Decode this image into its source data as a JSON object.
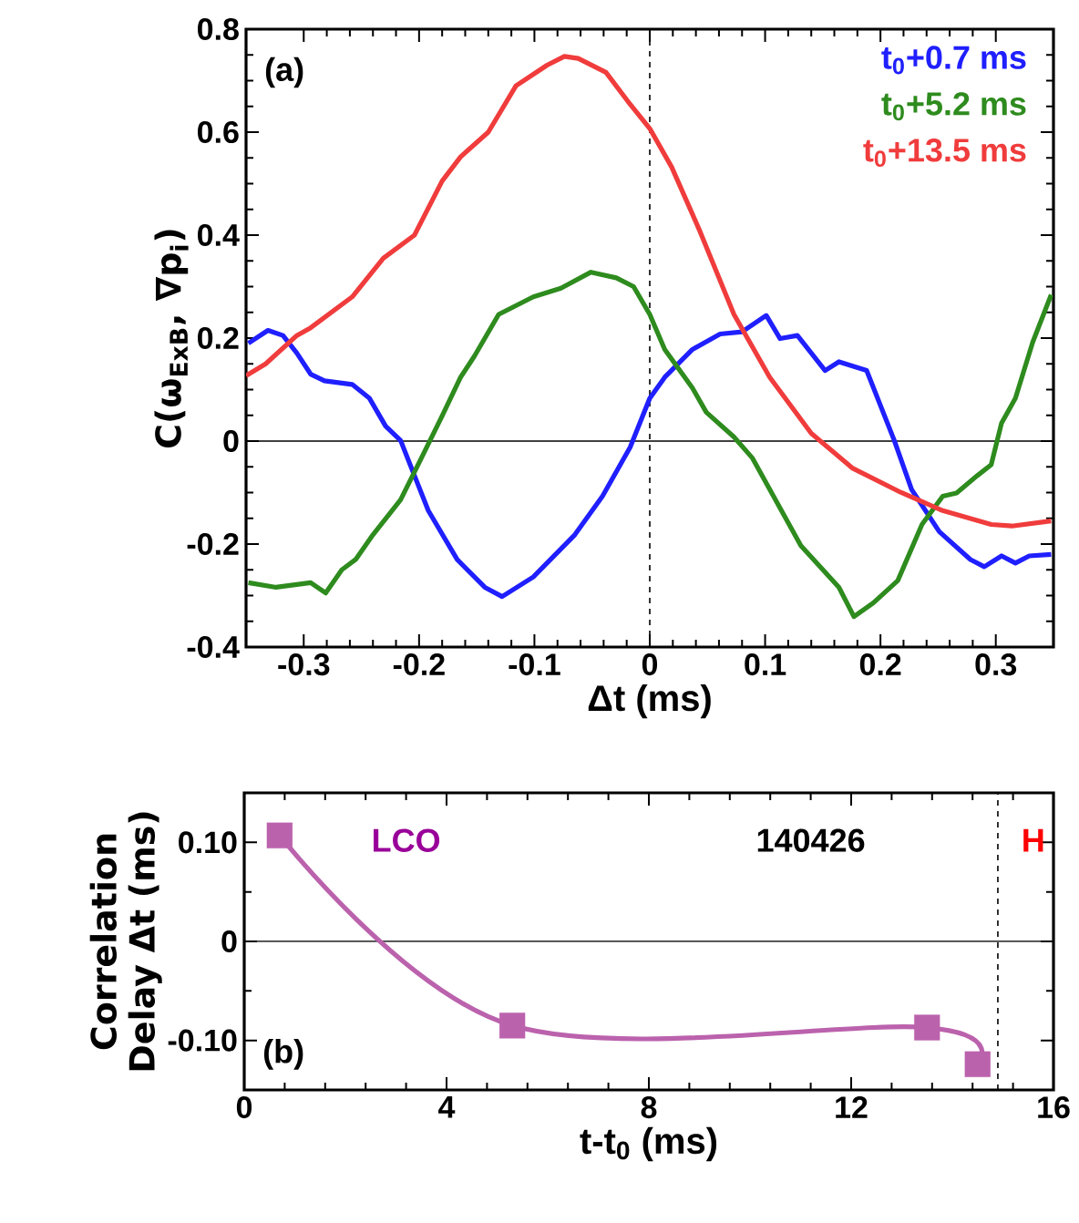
{
  "chart_data": [
    {
      "type": "line",
      "xlabel": "Δt (ms)",
      "ylabel": "C(ω$_{ExB}$, ∇p$_{i}$)",
      "xlim": [
        -0.35,
        0.35
      ],
      "ylim": [
        -0.4,
        0.8
      ],
      "xticks": [
        -0.3,
        -0.2,
        -0.1,
        0,
        0.1,
        0.2,
        0.3
      ],
      "yticks": [
        -0.4,
        -0.2,
        0,
        0.2,
        0.4,
        0.6,
        0.8
      ],
      "legend": "top right",
      "grid": false,
      "ref_lines": [
        {
          "axis": "x",
          "value": 0,
          "line_style": "dashed"
        },
        {
          "axis": "y",
          "value": 0,
          "line_style": "solid"
        }
      ],
      "annotations": [
        "(a)"
      ],
      "series": [
        {
          "name": "t$_{0}$+0.7 ms",
          "color": "#1f1fff",
          "x": [
            -0.348,
            -0.331,
            -0.318,
            -0.306,
            -0.294,
            -0.282,
            -0.258,
            -0.243,
            -0.229,
            -0.216,
            -0.204,
            -0.192,
            -0.167,
            -0.143,
            -0.128,
            -0.101,
            -0.065,
            -0.041,
            -0.017,
            0,
            0.013,
            0.037,
            0.061,
            0.08,
            0.101,
            0.113,
            0.128,
            0.152,
            0.164,
            0.188,
            0.212,
            0.227,
            0.251,
            0.278,
            0.29,
            0.305,
            0.317,
            0.329,
            0.348
          ],
          "values": [
            0.19,
            0.215,
            0.205,
            0.171,
            0.13,
            0.117,
            0.11,
            0.083,
            0.029,
            0.001,
            -0.067,
            -0.135,
            -0.23,
            -0.284,
            -0.302,
            -0.264,
            -0.182,
            -0.107,
            -0.012,
            0.083,
            0.124,
            0.178,
            0.208,
            0.212,
            0.244,
            0.199,
            0.205,
            0.137,
            0.154,
            0.137,
            0.001,
            -0.094,
            -0.176,
            -0.23,
            -0.244,
            -0.223,
            -0.237,
            -0.223,
            -0.22
          ]
        },
        {
          "name": "t$_{0}$+5.2 ms",
          "color": "#2e8b1e",
          "x": [
            -0.348,
            -0.324,
            -0.294,
            -0.281,
            -0.267,
            -0.255,
            -0.24,
            -0.216,
            -0.198,
            -0.18,
            -0.164,
            -0.152,
            -0.131,
            -0.101,
            -0.077,
            -0.051,
            -0.029,
            -0.014,
            0,
            0.013,
            0.037,
            0.049,
            0.073,
            0.089,
            0.104,
            0.131,
            0.164,
            0.177,
            0.194,
            0.215,
            0.236,
            0.254,
            0.266,
            0.284,
            0.296,
            0.305,
            0.317,
            0.332,
            0.348
          ],
          "values": [
            -0.275,
            -0.284,
            -0.275,
            -0.295,
            -0.25,
            -0.23,
            -0.182,
            -0.114,
            -0.033,
            0.049,
            0.124,
            0.165,
            0.246,
            0.28,
            0.297,
            0.328,
            0.317,
            0.3,
            0.246,
            0.178,
            0.103,
            0.056,
            0.008,
            -0.033,
            -0.094,
            -0.203,
            -0.284,
            -0.341,
            -0.314,
            -0.271,
            -0.162,
            -0.107,
            -0.101,
            -0.067,
            -0.046,
            0.035,
            0.083,
            0.192,
            0.284
          ]
        },
        {
          "name": "t$_{0}$+13.5 ms",
          "color": "#f03c3c",
          "x": [
            -0.35,
            -0.333,
            -0.306,
            -0.294,
            -0.258,
            -0.231,
            -0.204,
            -0.18,
            -0.164,
            -0.14,
            -0.116,
            -0.089,
            -0.074,
            -0.062,
            -0.038,
            -0.017,
            0,
            0.019,
            0.043,
            0.073,
            0.104,
            0.14,
            0.176,
            0.218,
            0.254,
            0.296,
            0.314,
            0.348
          ],
          "values": [
            0.127,
            0.15,
            0.205,
            0.22,
            0.28,
            0.355,
            0.4,
            0.505,
            0.552,
            0.6,
            0.69,
            0.73,
            0.747,
            0.743,
            0.716,
            0.654,
            0.607,
            0.532,
            0.41,
            0.246,
            0.124,
            0.015,
            -0.053,
            -0.1,
            -0.135,
            -0.162,
            -0.165,
            -0.155
          ]
        }
      ]
    },
    {
      "type": "line",
      "xlabel": "t-t$_{0}$ (ms)",
      "ylabel": "Correlation Delay Δt (ms)",
      "xlim": [
        0,
        16
      ],
      "ylim": [
        -0.15,
        0.15
      ],
      "xticks": [
        0,
        4,
        8,
        12,
        16
      ],
      "yticks": [
        {
          "value": -0.1,
          "label": "-0.10"
        },
        0,
        {
          "value": 0.1,
          "label": "0.10"
        }
      ],
      "grid": false,
      "marker": "square",
      "ref_lines": [
        {
          "axis": "x",
          "value": 14.9,
          "line_style": "dashed"
        },
        {
          "axis": "y",
          "value": 0,
          "line_style": "solid"
        }
      ],
      "annotations": [
        "(b)",
        "LCO",
        "140426",
        "H"
      ],
      "series": [
        {
          "color": "#bb62ad",
          "x": [
            0.7,
            5.3,
            13.5,
            14.5
          ],
          "values": [
            0.107,
            -0.085,
            -0.087,
            -0.124
          ]
        }
      ]
    }
  ]
}
